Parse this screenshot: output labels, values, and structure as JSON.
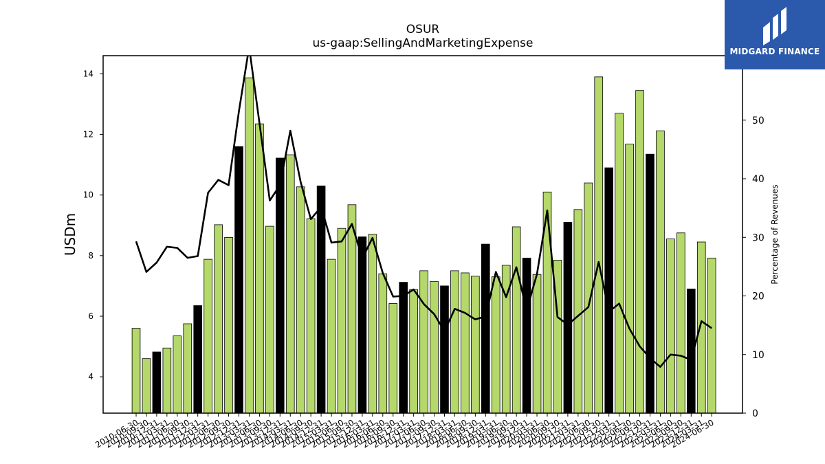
{
  "chart_data": {
    "type": "bar",
    "title": "OSUR",
    "subtitle": "us-gaap:SellingAndMarketingExpense",
    "ylabel": "USDm",
    "y2label": "Percentage of Revenues",
    "ylim": [
      2.8,
      14.6
    ],
    "y2lim": [
      0,
      61
    ],
    "yticks": [
      4,
      6,
      8,
      10,
      12,
      14
    ],
    "y2ticks": [
      0,
      10,
      20,
      30,
      40,
      50
    ],
    "categories": [
      "2010-06-30",
      "2010-09-30",
      "2010-12-31",
      "2011-03-31",
      "2011-06-30",
      "2011-09-30",
      "2011-12-31",
      "2012-03-31",
      "2012-06-30",
      "2012-09-30",
      "2012-12-31",
      "2013-03-31",
      "2013-06-30",
      "2013-09-30",
      "2013-12-31",
      "2014-03-31",
      "2014-06-30",
      "2014-09-30",
      "2014-12-31",
      "2015-03-31",
      "2015-06-30",
      "2015-09-30",
      "2015-12-31",
      "2016-03-31",
      "2016-06-30",
      "2016-09-30",
      "2016-12-31",
      "2017-03-31",
      "2017-06-30",
      "2017-09-30",
      "2017-12-31",
      "2018-03-31",
      "2018-06-30",
      "2018-09-30",
      "2018-12-31",
      "2019-03-31",
      "2019-06-30",
      "2019-09-30",
      "2019-12-31",
      "2020-03-31",
      "2020-06-30",
      "2020-09-30",
      "2020-12-31",
      "2021-03-31",
      "2021-06-30",
      "2021-09-30",
      "2021-12-31",
      "2022-03-31",
      "2022-06-30",
      "2022-09-30",
      "2022-12-31",
      "2023-03-31",
      "2023-06-30",
      "2023-09-30",
      "2023-12-31",
      "2024-03-31",
      "2024-06-30"
    ],
    "series": [
      {
        "type": "bar",
        "values": [
          5.6,
          4.6,
          4.82,
          4.95,
          5.35,
          5.75,
          6.35,
          7.88,
          9.02,
          8.6,
          11.6,
          13.87,
          12.35,
          8.97,
          11.22,
          11.33,
          10.27,
          9.22,
          10.3,
          7.88,
          8.9,
          9.68,
          8.62,
          8.7,
          7.4,
          6.42,
          7.12,
          6.88,
          7.5,
          7.15,
          7.0,
          7.5,
          7.43,
          7.32,
          8.38,
          7.3,
          7.68,
          8.95,
          7.92,
          7.38,
          10.1,
          7.85,
          9.1,
          9.52,
          10.4,
          13.9,
          10.9,
          12.7,
          11.68,
          13.45,
          11.35,
          12.12,
          8.55,
          8.75,
          6.9,
          8.45,
          7.92
        ]
      },
      {
        "type": "line",
        "axis": "right",
        "values": [
          29.3,
          24.1,
          25.7,
          28.4,
          28.2,
          26.5,
          26.8,
          37.6,
          39.8,
          38.9,
          51.5,
          62.5,
          49.5,
          36.3,
          38.9,
          48.2,
          39.5,
          33.1,
          35.2,
          29.1,
          29.3,
          32.3,
          26.4,
          29.9,
          23.9,
          19.9,
          20.0,
          21.1,
          18.6,
          16.9,
          14.0,
          17.8,
          17.1,
          16.0,
          16.5,
          24.1,
          19.8,
          24.9,
          17.6,
          23.7,
          34.6,
          16.4,
          15.1,
          16.6,
          18.1,
          25.8,
          17.3,
          18.7,
          14.4,
          11.4,
          9.4,
          7.9,
          10.0,
          9.8,
          9.1,
          15.7,
          14.5
        ]
      }
    ],
    "bar_colors": {
      "normal": "#b5d86a",
      "q4": "#000000"
    },
    "line_color": "#000000"
  },
  "branding": {
    "logo_text": "MIDGARD FINANCE",
    "logo_color": "#2b5aad"
  }
}
